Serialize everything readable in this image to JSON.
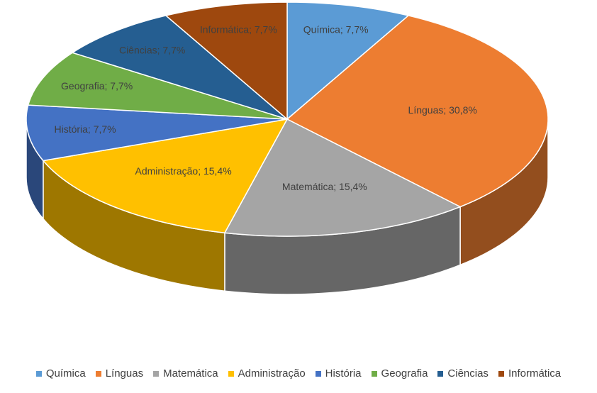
{
  "chart_data": {
    "type": "pie3d",
    "categories": [
      "Química",
      "Línguas",
      "Matemática",
      "Administração",
      "História",
      "Geografia",
      "Ciências",
      "Informática"
    ],
    "values": [
      7.7,
      30.8,
      15.4,
      15.4,
      7.7,
      7.7,
      7.7,
      7.7
    ],
    "value_labels": [
      "Química; 7,7%",
      "Línguas; 30,8%",
      "Matemática; 15,4%",
      "Administração; 15,4%",
      "História; 7,7%",
      "Geografia; 7,7%",
      "Ciências; 7,7%",
      "Informática; 7,7%"
    ],
    "colors": [
      "#5b9bd5",
      "#ed7d31",
      "#a5a5a5",
      "#ffc000",
      "#4472c4",
      "#70ad47",
      "#255e91",
      "#9e480e"
    ],
    "legend": "bottom"
  }
}
